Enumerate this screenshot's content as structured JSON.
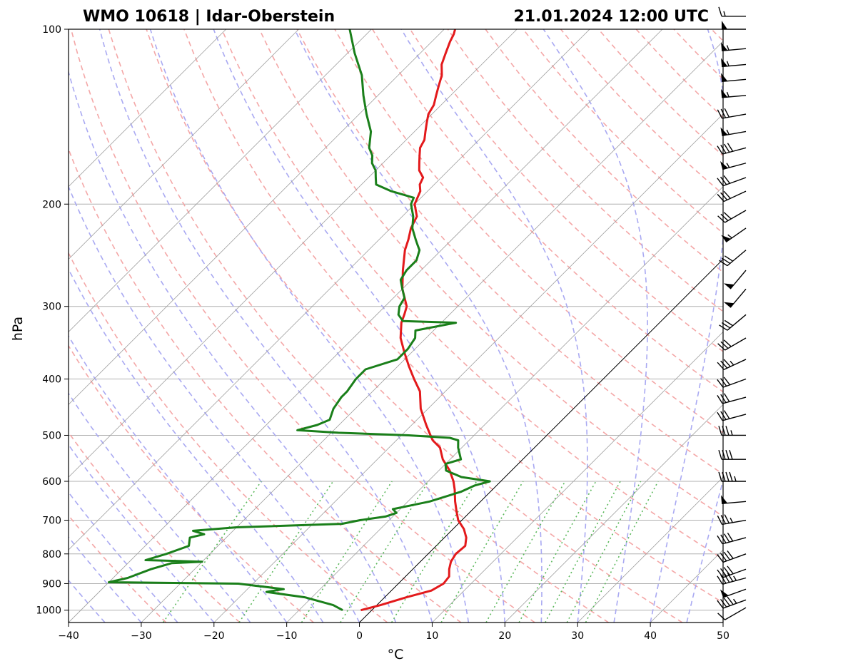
{
  "chart_data": {
    "type": "line",
    "title_left": "WMO 10618 | Idar-Oberstein",
    "title_right": "21.01.2024 12:00 UTC",
    "xlabel": "°C",
    "ylabel": "hPa",
    "xlim": [
      -40,
      50
    ],
    "ylim_pressure": [
      1050,
      100
    ],
    "x_ticks": [
      -40,
      -30,
      -20,
      -10,
      0,
      10,
      20,
      30,
      40,
      50
    ],
    "x_tick_labels": [
      "−40",
      "−30",
      "−20",
      "−10",
      "0",
      "10",
      "20",
      "30",
      "40",
      "50"
    ],
    "y_ticks": [
      100,
      200,
      300,
      400,
      500,
      600,
      700,
      800,
      900,
      1000
    ],
    "y_tick_labels": [
      "100",
      "200",
      "300",
      "400",
      "500",
      "600",
      "700",
      "800",
      "900",
      "1000"
    ],
    "grid": true,
    "colors": {
      "temperature": "#e31a1c",
      "dewpoint": "#1a7f1a",
      "dry_adiabats": "#f4a7a7",
      "moist_adiabats": "#a9a9f2",
      "mixing_ratio": "#5cb85c",
      "isotherms": "#9e9e9e",
      "grid": "#b0b0b0"
    },
    "series": [
      {
        "name": "temperature",
        "points": [
          [
            1000,
            -1.5
          ],
          [
            980,
            0.5
          ],
          [
            950,
            3
          ],
          [
            925,
            5.5
          ],
          [
            900,
            6.2
          ],
          [
            875,
            6.0
          ],
          [
            850,
            5.0
          ],
          [
            825,
            4.2
          ],
          [
            800,
            3.8
          ],
          [
            775,
            4.0
          ],
          [
            750,
            3.0
          ],
          [
            725,
            1.5
          ],
          [
            700,
            -0.5
          ],
          [
            675,
            -2.0
          ],
          [
            650,
            -3.5
          ],
          [
            620,
            -5.2
          ],
          [
            600,
            -6.5
          ],
          [
            575,
            -8.5
          ],
          [
            550,
            -11.0
          ],
          [
            525,
            -13.0
          ],
          [
            510,
            -15.0
          ],
          [
            500,
            -16.0
          ],
          [
            480,
            -18.0
          ],
          [
            450,
            -21.0
          ],
          [
            420,
            -23.5
          ],
          [
            400,
            -26.0
          ],
          [
            380,
            -28.5
          ],
          [
            360,
            -31.0
          ],
          [
            340,
            -33.5
          ],
          [
            320,
            -35.5
          ],
          [
            310,
            -36.2
          ],
          [
            300,
            -37.0
          ],
          [
            280,
            -40.0
          ],
          [
            260,
            -42.5
          ],
          [
            240,
            -45.0
          ],
          [
            230,
            -46.0
          ],
          [
            220,
            -47.2
          ],
          [
            210,
            -48.0
          ],
          [
            200,
            -50.0
          ],
          [
            190,
            -51.0
          ],
          [
            185,
            -52.0
          ],
          [
            180,
            -52.5
          ],
          [
            175,
            -54.0
          ],
          [
            170,
            -55.0
          ],
          [
            165,
            -56.0
          ],
          [
            160,
            -57.0
          ],
          [
            155,
            -57.5
          ],
          [
            150,
            -58.5
          ],
          [
            145,
            -59.5
          ],
          [
            140,
            -60.5
          ],
          [
            135,
            -61.0
          ],
          [
            130,
            -62.0
          ],
          [
            125,
            -63.0
          ],
          [
            120,
            -64.0
          ],
          [
            115,
            -65.5
          ],
          [
            110,
            -66.5
          ],
          [
            105,
            -67.5
          ],
          [
            102,
            -68.0
          ],
          [
            100,
            -68.5
          ]
        ]
      },
      {
        "name": "dewpoint",
        "points": [
          [
            1000,
            -4.0
          ],
          [
            980,
            -6.0
          ],
          [
            950,
            -11.0
          ],
          [
            930,
            -17.0
          ],
          [
            920,
            -15.0
          ],
          [
            900,
            -22.0
          ],
          [
            895,
            -40.0
          ],
          [
            880,
            -38.0
          ],
          [
            850,
            -36.0
          ],
          [
            830,
            -34.0
          ],
          [
            825,
            -30.0
          ],
          [
            820,
            -38.0
          ],
          [
            800,
            -36.0
          ],
          [
            775,
            -34.0
          ],
          [
            750,
            -35.0
          ],
          [
            740,
            -33.5
          ],
          [
            730,
            -35.5
          ],
          [
            720,
            -30.0
          ],
          [
            710,
            -16.0
          ],
          [
            700,
            -14.0
          ],
          [
            690,
            -11.0
          ],
          [
            680,
            -10.0
          ],
          [
            670,
            -11.0
          ],
          [
            660,
            -9.0
          ],
          [
            650,
            -7.0
          ],
          [
            625,
            -4.0
          ],
          [
            610,
            -3.0
          ],
          [
            600,
            -1.5
          ],
          [
            590,
            -6.0
          ],
          [
            575,
            -9.0
          ],
          [
            560,
            -10.0
          ],
          [
            550,
            -8.5
          ],
          [
            525,
            -10.5
          ],
          [
            510,
            -11.5
          ],
          [
            505,
            -13.0
          ],
          [
            500,
            -19.0
          ],
          [
            495,
            -29.0
          ],
          [
            490,
            -35.0
          ],
          [
            480,
            -33.0
          ],
          [
            470,
            -32.0
          ],
          [
            450,
            -33.0
          ],
          [
            430,
            -33.5
          ],
          [
            420,
            -33.5
          ],
          [
            400,
            -34.0
          ],
          [
            385,
            -34.0
          ],
          [
            370,
            -31.0
          ],
          [
            355,
            -31.0
          ],
          [
            340,
            -31.5
          ],
          [
            330,
            -32.5
          ],
          [
            320,
            -28.0
          ],
          [
            318,
            -35.5
          ],
          [
            310,
            -37.0
          ],
          [
            300,
            -38.0
          ],
          [
            290,
            -38.5
          ],
          [
            280,
            -40.0
          ],
          [
            270,
            -41.5
          ],
          [
            260,
            -42.0
          ],
          [
            250,
            -42.0
          ],
          [
            240,
            -43.0
          ],
          [
            235,
            -44.0
          ],
          [
            230,
            -45.0
          ],
          [
            220,
            -47.0
          ],
          [
            210,
            -48.5
          ],
          [
            200,
            -50.5
          ],
          [
            195,
            -51.0
          ],
          [
            190,
            -55.0
          ],
          [
            185,
            -58.0
          ],
          [
            180,
            -59.0
          ],
          [
            175,
            -60.0
          ],
          [
            170,
            -61.5
          ],
          [
            165,
            -62.5
          ],
          [
            160,
            -64.0
          ],
          [
            150,
            -66.0
          ],
          [
            140,
            -69.0
          ],
          [
            130,
            -72.0
          ],
          [
            120,
            -75.0
          ],
          [
            110,
            -79.0
          ],
          [
            100,
            -83.0
          ]
        ]
      }
    ],
    "wind_barbs": [
      {
        "p": 990,
        "speed_kt": 10,
        "dir_deg": 240
      },
      {
        "p": 960,
        "speed_kt": 45,
        "dir_deg": 250
      },
      {
        "p": 920,
        "speed_kt": 50,
        "dir_deg": 250
      },
      {
        "p": 880,
        "speed_kt": 45,
        "dir_deg": 255
      },
      {
        "p": 850,
        "speed_kt": 40,
        "dir_deg": 250
      },
      {
        "p": 800,
        "speed_kt": 40,
        "dir_deg": 250
      },
      {
        "p": 750,
        "speed_kt": 40,
        "dir_deg": 255
      },
      {
        "p": 700,
        "speed_kt": 35,
        "dir_deg": 260
      },
      {
        "p": 650,
        "speed_kt": 50,
        "dir_deg": 265
      },
      {
        "p": 600,
        "speed_kt": 45,
        "dir_deg": 270
      },
      {
        "p": 550,
        "speed_kt": 40,
        "dir_deg": 270
      },
      {
        "p": 500,
        "speed_kt": 35,
        "dir_deg": 270
      },
      {
        "p": 460,
        "speed_kt": 30,
        "dir_deg": 255
      },
      {
        "p": 430,
        "speed_kt": 30,
        "dir_deg": 255
      },
      {
        "p": 400,
        "speed_kt": 30,
        "dir_deg": 250
      },
      {
        "p": 370,
        "speed_kt": 35,
        "dir_deg": 245
      },
      {
        "p": 340,
        "speed_kt": 30,
        "dir_deg": 240
      },
      {
        "p": 310,
        "speed_kt": 30,
        "dir_deg": 230
      },
      {
        "p": 280,
        "speed_kt": 50,
        "dir_deg": 220
      },
      {
        "p": 260,
        "speed_kt": 50,
        "dir_deg": 220
      },
      {
        "p": 240,
        "speed_kt": 30,
        "dir_deg": 230
      },
      {
        "p": 220,
        "speed_kt": 55,
        "dir_deg": 235
      },
      {
        "p": 205,
        "speed_kt": 30,
        "dir_deg": 240
      },
      {
        "p": 190,
        "speed_kt": 30,
        "dir_deg": 245
      },
      {
        "p": 180,
        "speed_kt": 30,
        "dir_deg": 250
      },
      {
        "p": 170,
        "speed_kt": 55,
        "dir_deg": 255
      },
      {
        "p": 160,
        "speed_kt": 40,
        "dir_deg": 255
      },
      {
        "p": 150,
        "speed_kt": 55,
        "dir_deg": 260
      },
      {
        "p": 140,
        "speed_kt": 30,
        "dir_deg": 260
      },
      {
        "p": 130,
        "speed_kt": 55,
        "dir_deg": 265
      },
      {
        "p": 122,
        "speed_kt": 50,
        "dir_deg": 265
      },
      {
        "p": 115,
        "speed_kt": 55,
        "dir_deg": 265
      },
      {
        "p": 108,
        "speed_kt": 55,
        "dir_deg": 265
      },
      {
        "p": 100,
        "speed_kt": 50,
        "dir_deg": 270
      },
      {
        "p": 95,
        "speed_kt": 15,
        "dir_deg": 270
      }
    ]
  }
}
